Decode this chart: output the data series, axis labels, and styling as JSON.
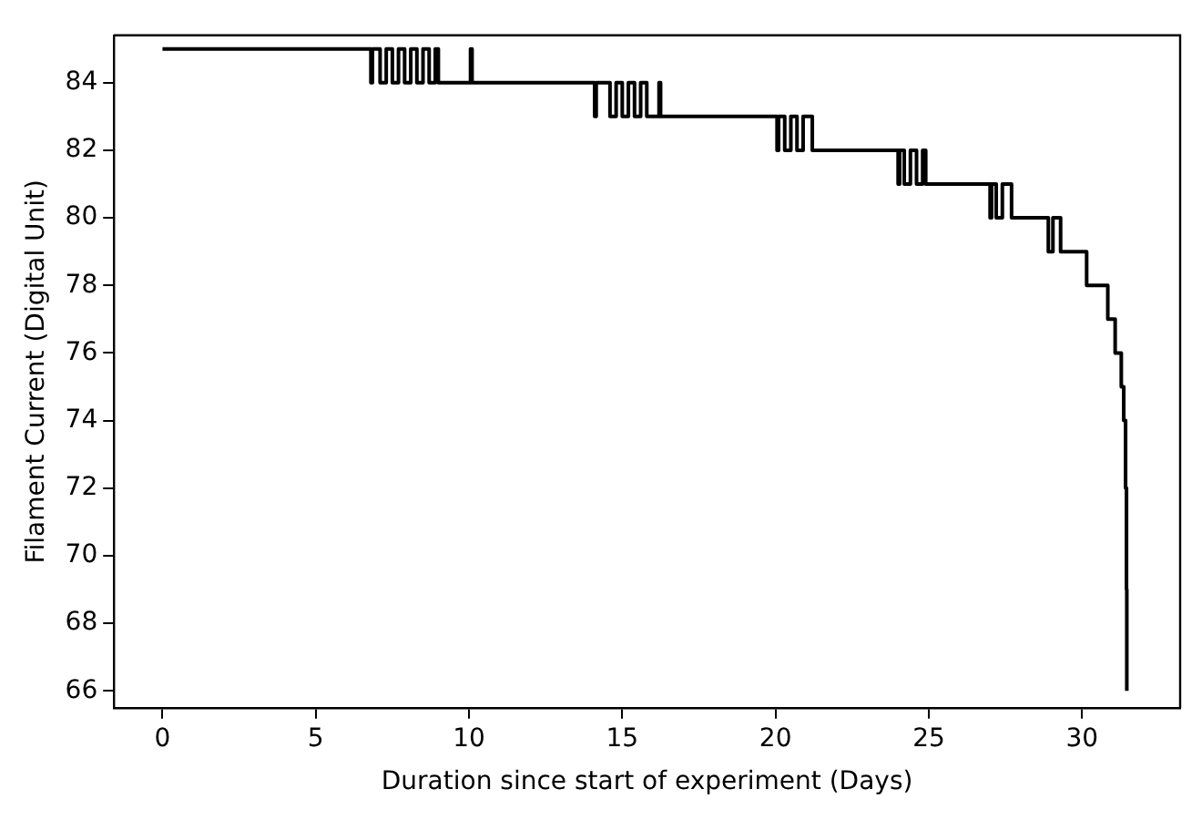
{
  "chart_data": {
    "type": "step",
    "xlabel": "Duration since start of experiment (Days)",
    "ylabel": "Filament Current (Digital Unit)",
    "xlim": [
      -1.58,
      33.2
    ],
    "ylim": [
      65.5,
      85.4
    ],
    "xticks": [
      0,
      5,
      10,
      15,
      20,
      25,
      30
    ],
    "yticks": [
      66,
      68,
      70,
      72,
      74,
      76,
      78,
      80,
      82,
      84
    ],
    "grid": false,
    "legend": false,
    "marker": "none",
    "line_style": "solid",
    "series": [
      {
        "color": "#000000",
        "x": [
          0,
          6.8,
          6.85,
          7.1,
          7.3,
          7.5,
          7.7,
          7.9,
          8.1,
          8.3,
          8.5,
          8.7,
          8.9,
          9.0,
          10.05,
          10.1,
          14.1,
          14.15,
          14.6,
          14.8,
          15.0,
          15.2,
          15.4,
          15.6,
          15.8,
          16.0,
          16.2,
          16.25,
          20.05,
          20.1,
          20.3,
          20.5,
          20.7,
          20.9,
          21.2,
          24.0,
          24.05,
          24.2,
          24.4,
          24.6,
          24.8,
          24.9,
          27.0,
          27.05,
          27.2,
          27.4,
          27.7,
          28.9,
          29.05,
          29.3,
          30.15,
          30.84,
          31.08,
          31.28,
          31.36,
          31.42,
          31.45,
          31.46
        ],
        "values": [
          85,
          84,
          85,
          84,
          85,
          84,
          85,
          84,
          85,
          84,
          85,
          84,
          85,
          84,
          85,
          84,
          83,
          84,
          83,
          84,
          83,
          84,
          83,
          84,
          83,
          83,
          84,
          83,
          82,
          83,
          82,
          83,
          82,
          83,
          82,
          81,
          82,
          81,
          82,
          81,
          82,
          81,
          80,
          81,
          80,
          81,
          80,
          79,
          80,
          79,
          78,
          77,
          76,
          75,
          74,
          72,
          69,
          66
        ]
      }
    ]
  }
}
